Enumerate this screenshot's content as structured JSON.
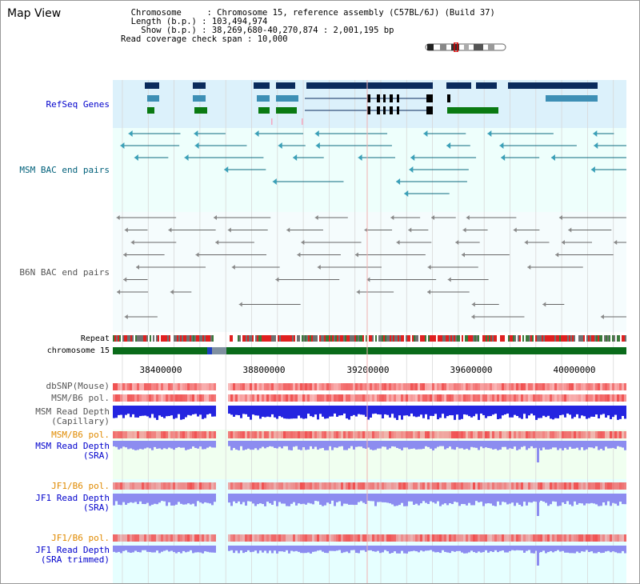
{
  "title": "Map View",
  "info": {
    "chromosome_label": "Chromosome",
    "chromosome_value": "Chromosome 15, reference assembly (C57BL/6J) (Build 37)",
    "length_label": "Length (b.p.)",
    "length_value": "103,494,974",
    "show_label": "Show (b.p.)",
    "show_value": "38,269,680-40,270,874 : 2,001,195 bp",
    "coverage_label": "Read coverage check span",
    "coverage_value": "10,000"
  },
  "tracks": {
    "refseq": "RefSeq Genes",
    "msm_bac": "MSM BAC end pairs",
    "b6n_bac": "B6N BAC end pairs",
    "repeat": "Repeat",
    "chromosome": "chromosome 15",
    "dbsnp": "dbSNP(Mouse)",
    "msm_b6_pol_1": "MSM/B6 pol.",
    "msm_depth_cap_1": "MSM Read Depth",
    "msm_depth_cap_2": "(Capillary)",
    "msm_b6_pol_2": "MSM/B6 pol.",
    "msm_depth_sra_1": "MSM Read Depth",
    "msm_depth_sra_2": "(SRA)",
    "jf1_pol_1": "JF1/B6 pol.",
    "jf1_depth_sra_1": "JF1 Read Depth",
    "jf1_depth_sra_2": "(SRA)",
    "jf1_pol_2": "JF1/B6 pol.",
    "jf1_depth_trim_1": "JF1 Read Depth",
    "jf1_depth_trim_2": "(SRA trimmed)"
  },
  "axis": {
    "ticks": [
      "38400000",
      "38800000",
      "39200000",
      "39600000",
      "40000000"
    ]
  },
  "colors": {
    "navy": "#0b2b5c",
    "steel": "#3d8fb5",
    "green": "#0a7a12",
    "teal": "#0e6b80",
    "polRed": "#f05050",
    "depthBlue": "#2424e0",
    "depthLight": "#8c8cf0"
  }
}
